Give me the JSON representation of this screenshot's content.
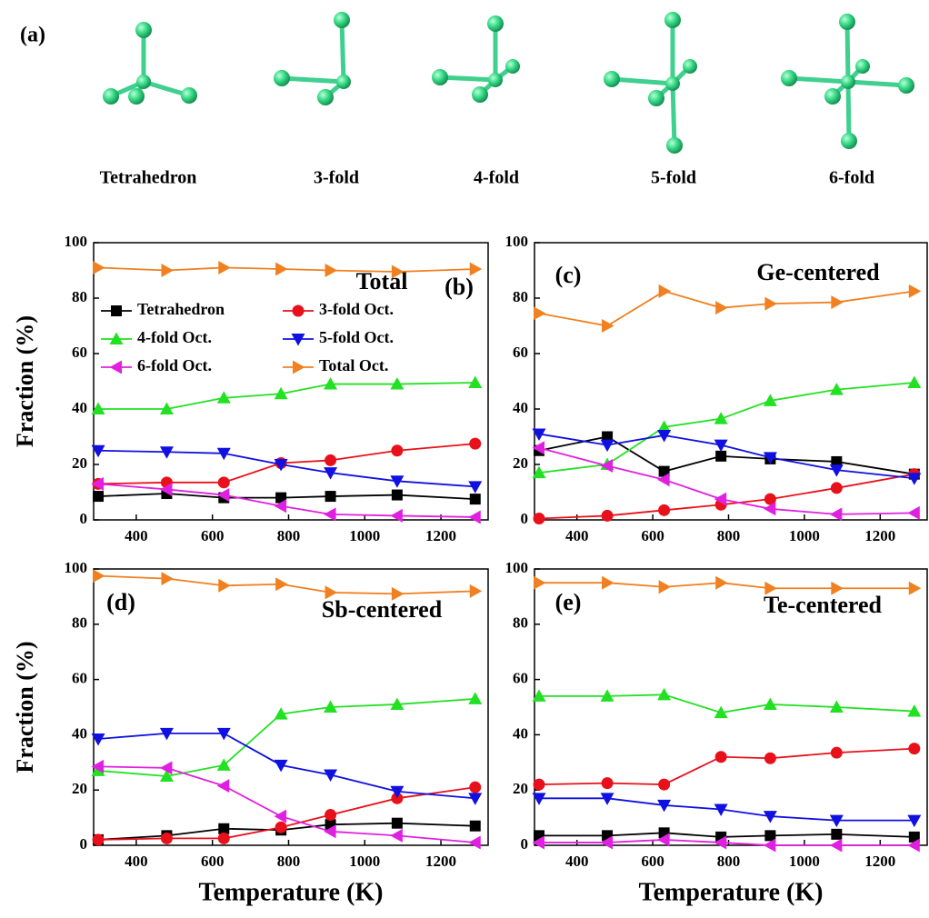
{
  "panel_a": {
    "label": "(a)",
    "structures": [
      "Tetrahedron",
      "3-fold",
      "4-fold",
      "5-fold",
      "6-fold"
    ]
  },
  "chart_data": [
    {
      "type": "line",
      "title": "Total",
      "panel_label": "(b)",
      "ylabel": "Fraction (%)",
      "legend": "center left",
      "x": [
        300,
        480,
        630,
        780,
        910,
        1085,
        1290
      ],
      "xlim": [
        288,
        1324
      ],
      "xticks": [
        400,
        600,
        800,
        1000,
        1200
      ],
      "ylim": [
        0,
        100
      ],
      "yticks": [
        0,
        20,
        40,
        60,
        80,
        100
      ],
      "series": [
        {
          "name": "Tetrahedron",
          "color": "#000000",
          "marker": "square",
          "values": [
            8.5,
            9.5,
            8,
            8,
            8.5,
            9,
            7.5
          ]
        },
        {
          "name": "3-fold Oct.",
          "color": "#e8101a",
          "marker": "circle",
          "values": [
            13,
            13.5,
            13.5,
            20.5,
            21.5,
            25,
            27.5
          ]
        },
        {
          "name": "4-fold Oct.",
          "color": "#22e022",
          "marker": "triangle-up",
          "values": [
            40,
            40,
            44,
            45.5,
            49,
            49,
            49.5
          ]
        },
        {
          "name": "5-fold Oct.",
          "color": "#1010e0",
          "marker": "triangle-down",
          "values": [
            25,
            24.5,
            24,
            20,
            17,
            14,
            12
          ]
        },
        {
          "name": "6-fold Oct.",
          "color": "#e020e0",
          "marker": "triangle-left",
          "values": [
            13,
            11,
            9,
            5,
            2,
            1.5,
            1
          ]
        },
        {
          "name": "Total Oct.",
          "color": "#f08020",
          "marker": "triangle-right",
          "values": [
            91,
            90,
            91,
            90.5,
            90,
            89.5,
            90.5
          ]
        }
      ]
    },
    {
      "type": "line",
      "title": "Ge-centered",
      "panel_label": "(c)",
      "x": [
        300,
        480,
        630,
        780,
        910,
        1085,
        1290
      ],
      "xlim": [
        288,
        1324
      ],
      "xticks": [
        400,
        600,
        800,
        1000,
        1200
      ],
      "ylim": [
        0,
        100
      ],
      "yticks": [
        0,
        20,
        40,
        60,
        80,
        100
      ],
      "series": [
        {
          "color": "#000000",
          "marker": "square",
          "values": [
            25,
            30,
            17.5,
            23,
            22,
            21,
            16.5
          ]
        },
        {
          "color": "#e8101a",
          "marker": "circle",
          "values": [
            0.5,
            1.5,
            3.5,
            5.5,
            7.5,
            11.5,
            16.5
          ]
        },
        {
          "color": "#22e022",
          "marker": "triangle-up",
          "values": [
            17,
            20,
            33.5,
            36.5,
            43,
            47,
            49.5
          ]
        },
        {
          "color": "#1010e0",
          "marker": "triangle-down",
          "values": [
            31,
            27,
            30.5,
            27,
            22.5,
            18,
            15
          ]
        },
        {
          "color": "#e020e0",
          "marker": "triangle-left",
          "values": [
            26,
            19.5,
            14.5,
            7.5,
            4,
            2,
            2.5
          ]
        },
        {
          "color": "#f08020",
          "marker": "triangle-right",
          "values": [
            74.5,
            70,
            82.5,
            76.5,
            78,
            78.5,
            82.5
          ]
        }
      ]
    },
    {
      "type": "line",
      "title": "Sb-centered",
      "panel_label": "(d)",
      "ylabel": "Fraction (%)",
      "xlabel": "Temperature (K)",
      "x": [
        300,
        480,
        630,
        780,
        910,
        1085,
        1290
      ],
      "xlim": [
        288,
        1324
      ],
      "xticks": [
        400,
        600,
        800,
        1000,
        1200
      ],
      "ylim": [
        0,
        100
      ],
      "yticks": [
        0,
        20,
        40,
        60,
        80,
        100
      ],
      "series": [
        {
          "color": "#000000",
          "marker": "square",
          "values": [
            2,
            3.5,
            6,
            5.5,
            7.5,
            8,
            7
          ]
        },
        {
          "color": "#e8101a",
          "marker": "circle",
          "values": [
            2,
            2.5,
            2.5,
            6.5,
            11,
            17,
            21
          ]
        },
        {
          "color": "#22e022",
          "marker": "triangle-up",
          "values": [
            27,
            25,
            29,
            47.5,
            50,
            51,
            53
          ]
        },
        {
          "color": "#1010e0",
          "marker": "triangle-down",
          "values": [
            38.5,
            40.5,
            40.5,
            29,
            25.5,
            19.5,
            17
          ]
        },
        {
          "color": "#e020e0",
          "marker": "triangle-left",
          "values": [
            28.5,
            28,
            21.5,
            10.5,
            5,
            3.5,
            1
          ]
        },
        {
          "color": "#f08020",
          "marker": "triangle-right",
          "values": [
            97.5,
            96.5,
            94,
            94.5,
            91.5,
            91,
            92
          ]
        }
      ]
    },
    {
      "type": "line",
      "title": "Te-centered",
      "panel_label": "(e)",
      "xlabel": "Temperature (K)",
      "x": [
        300,
        480,
        630,
        780,
        910,
        1085,
        1290
      ],
      "xlim": [
        288,
        1324
      ],
      "xticks": [
        400,
        600,
        800,
        1000,
        1200
      ],
      "ylim": [
        0,
        100
      ],
      "yticks": [
        0,
        20,
        40,
        60,
        80,
        100
      ],
      "series": [
        {
          "color": "#000000",
          "marker": "square",
          "values": [
            3.5,
            3.5,
            4.5,
            3,
            3.5,
            4,
            3
          ]
        },
        {
          "color": "#e8101a",
          "marker": "circle",
          "values": [
            22,
            22.5,
            22,
            32,
            31.5,
            33.5,
            35
          ]
        },
        {
          "color": "#22e022",
          "marker": "triangle-up",
          "values": [
            54,
            54,
            54.5,
            48,
            51,
            50,
            48.5
          ]
        },
        {
          "color": "#1010e0",
          "marker": "triangle-down",
          "values": [
            17,
            17,
            14.5,
            13,
            10.5,
            9,
            9
          ]
        },
        {
          "color": "#e020e0",
          "marker": "triangle-left",
          "values": [
            1,
            1,
            2,
            1,
            0,
            0,
            0
          ]
        },
        {
          "color": "#f08020",
          "marker": "triangle-right",
          "values": [
            95,
            95,
            93.5,
            95,
            93,
            93,
            93
          ]
        }
      ]
    }
  ]
}
